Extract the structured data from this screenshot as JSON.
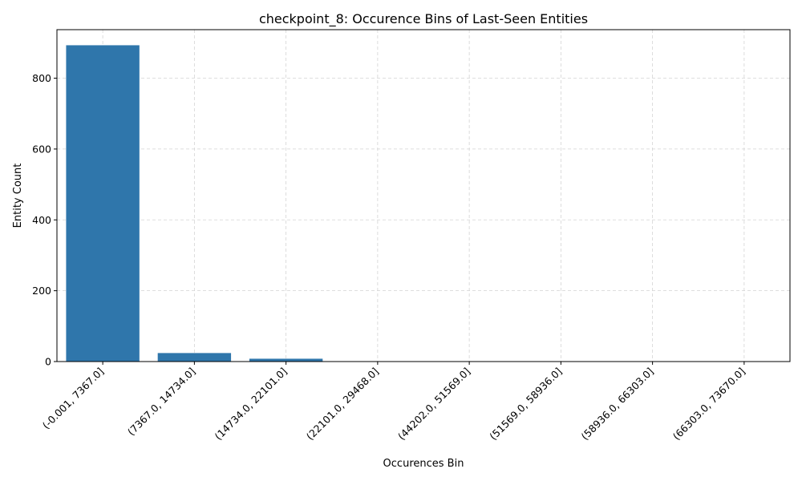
{
  "chart_data": {
    "type": "bar",
    "title": "checkpoint_8: Occurence Bins of Last-Seen Entities",
    "xlabel": "Occurences Bin",
    "ylabel": "Entity Count",
    "categories": [
      "(-0.001, 7367.0]",
      "(7367.0, 14734.0]",
      "(14734.0, 22101.0]",
      "(22101.0, 29468.0]",
      "(44202.0, 51569.0]",
      "(51569.0, 58936.0]",
      "(58936.0, 66303.0]",
      "(66303.0, 73670.0]"
    ],
    "values": [
      893,
      24,
      8,
      1,
      1,
      1,
      1,
      1
    ],
    "ylim": [
      0,
      937
    ],
    "yticks": [
      0,
      200,
      400,
      600,
      800
    ],
    "grid": true,
    "bar_color": "#2f76ab"
  }
}
